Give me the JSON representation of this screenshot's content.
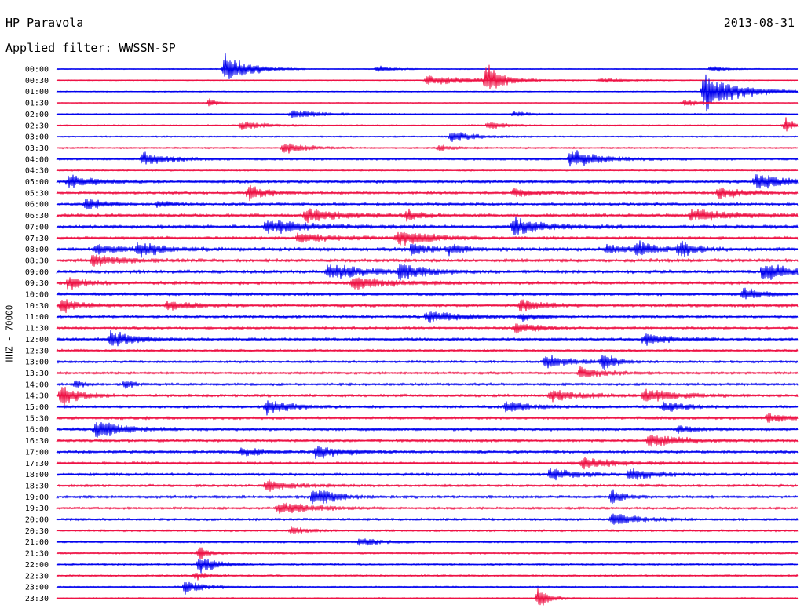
{
  "header": {
    "station": "HP Paravola",
    "date": "2013-08-31",
    "filter": "Applied filter: WWSSN-SP"
  },
  "channel_label": "HHZ - 70000",
  "colors": {
    "trace_a": "#0000ee",
    "trace_b": "#ee1144",
    "background": "#ffffff",
    "text": "#000000"
  },
  "chart_data": {
    "type": "line",
    "title": "",
    "ylabel": "HHZ - 70000",
    "xlabel": "",
    "grid": false,
    "legend": "none",
    "row_labels": [
      "00:00",
      "00:30",
      "01:00",
      "01:30",
      "02:00",
      "02:30",
      "03:00",
      "03:30",
      "04:00",
      "04:30",
      "05:00",
      "05:30",
      "06:00",
      "06:30",
      "07:00",
      "07:30",
      "08:00",
      "08:30",
      "09:00",
      "09:30",
      "10:00",
      "10:30",
      "11:00",
      "11:30",
      "12:00",
      "12:30",
      "13:00",
      "13:30",
      "14:00",
      "14:30",
      "15:00",
      "15:30",
      "16:00",
      "16:30",
      "17:00",
      "17:30",
      "18:00",
      "18:30",
      "19:00",
      "19:30",
      "20:00",
      "20:30",
      "21:00",
      "21:30",
      "22:00",
      "22:30",
      "23:00",
      "23:30"
    ],
    "row_minutes": 30,
    "color_cycle": [
      "trace_a",
      "trace_b"
    ],
    "background_noise": [
      0.5,
      0.5,
      0.6,
      0.5,
      0.7,
      0.8,
      0.8,
      0.9,
      1.2,
      0.8,
      1.6,
      1.4,
      1.5,
      1.8,
      1.8,
      1.6,
      1.9,
      1.8,
      1.8,
      1.7,
      1.5,
      1.7,
      1.4,
      1.3,
      1.5,
      1.3,
      1.3,
      1.3,
      1.4,
      1.5,
      1.5,
      1.5,
      1.6,
      1.5,
      1.5,
      1.4,
      1.5,
      1.4,
      1.5,
      1.3,
      1.3,
      1.1,
      1.1,
      1.0,
      1.0,
      1.0,
      0.9,
      0.8
    ],
    "events": [
      {
        "row": 0,
        "minute": 6.8,
        "amplitude": 22,
        "duration": 1.5
      },
      {
        "row": 0,
        "minute": 13,
        "amplitude": 5,
        "duration": 1
      },
      {
        "row": 0,
        "minute": 26.5,
        "amplitude": 4,
        "duration": 1
      },
      {
        "row": 1,
        "minute": 15,
        "amplitude": 7,
        "duration": 3.5
      },
      {
        "row": 1,
        "minute": 17.4,
        "amplitude": 22,
        "duration": 1
      },
      {
        "row": 1,
        "minute": 22,
        "amplitude": 3,
        "duration": 2
      },
      {
        "row": 2,
        "minute": 26.2,
        "amplitude": 30,
        "duration": 2
      },
      {
        "row": 3,
        "minute": 6.2,
        "amplitude": 8,
        "duration": 0.4
      },
      {
        "row": 3,
        "minute": 25.4,
        "amplitude": 5,
        "duration": 1
      },
      {
        "row": 4,
        "minute": 9.5,
        "amplitude": 6,
        "duration": 2
      },
      {
        "row": 4,
        "minute": 18.5,
        "amplitude": 4,
        "duration": 1
      },
      {
        "row": 5,
        "minute": 7.5,
        "amplitude": 6,
        "duration": 1.5
      },
      {
        "row": 5,
        "minute": 17.5,
        "amplitude": 6,
        "duration": 1
      },
      {
        "row": 5,
        "minute": 29.5,
        "amplitude": 10,
        "duration": 0.6
      },
      {
        "row": 6,
        "minute": 16,
        "amplitude": 8,
        "duration": 1.5
      },
      {
        "row": 7,
        "minute": 9.2,
        "amplitude": 8,
        "duration": 1.5
      },
      {
        "row": 7,
        "minute": 15.5,
        "amplitude": 4,
        "duration": 1
      },
      {
        "row": 8,
        "minute": 3.5,
        "amplitude": 10,
        "duration": 1.5
      },
      {
        "row": 8,
        "minute": 20.8,
        "amplitude": 14,
        "duration": 1.8
      },
      {
        "row": 10,
        "minute": 0.5,
        "amplitude": 9,
        "duration": 1.5
      },
      {
        "row": 10,
        "minute": 28.3,
        "amplitude": 10,
        "duration": 2
      },
      {
        "row": 11,
        "minute": 7.8,
        "amplitude": 12,
        "duration": 1
      },
      {
        "row": 11,
        "minute": 18.5,
        "amplitude": 6,
        "duration": 1.5
      },
      {
        "row": 11,
        "minute": 26.8,
        "amplitude": 9,
        "duration": 1.5
      },
      {
        "row": 12,
        "minute": 1.2,
        "amplitude": 8,
        "duration": 1.2
      },
      {
        "row": 12,
        "minute": 4.1,
        "amplitude": 6,
        "duration": 0.8
      },
      {
        "row": 13,
        "minute": 10.1,
        "amplitude": 10,
        "duration": 2
      },
      {
        "row": 13,
        "minute": 14.2,
        "amplitude": 8,
        "duration": 0.8
      },
      {
        "row": 13,
        "minute": 25.7,
        "amplitude": 9,
        "duration": 2
      },
      {
        "row": 14,
        "minute": 8.5,
        "amplitude": 10,
        "duration": 2.5
      },
      {
        "row": 14,
        "minute": 18.5,
        "amplitude": 12,
        "duration": 2
      },
      {
        "row": 15,
        "minute": 9.8,
        "amplitude": 7,
        "duration": 2
      },
      {
        "row": 15,
        "minute": 13.8,
        "amplitude": 12,
        "duration": 2
      },
      {
        "row": 16,
        "minute": 1.6,
        "amplitude": 6,
        "duration": 1.5
      },
      {
        "row": 16,
        "minute": 3.3,
        "amplitude": 10,
        "duration": 1.5
      },
      {
        "row": 16,
        "minute": 14.4,
        "amplitude": 10,
        "duration": 1
      },
      {
        "row": 16,
        "minute": 15.9,
        "amplitude": 7,
        "duration": 1
      },
      {
        "row": 16,
        "minute": 22.3,
        "amplitude": 8,
        "duration": 1
      },
      {
        "row": 16,
        "minute": 23.5,
        "amplitude": 12,
        "duration": 1
      },
      {
        "row": 16,
        "minute": 25.2,
        "amplitude": 12,
        "duration": 1
      },
      {
        "row": 17,
        "minute": 1.5,
        "amplitude": 10,
        "duration": 1.5
      },
      {
        "row": 18,
        "minute": 11,
        "amplitude": 10,
        "duration": 2.5
      },
      {
        "row": 18,
        "minute": 13.9,
        "amplitude": 12,
        "duration": 1.5
      },
      {
        "row": 18,
        "minute": 28.6,
        "amplitude": 14,
        "duration": 1.5
      },
      {
        "row": 19,
        "minute": 0.5,
        "amplitude": 10,
        "duration": 1
      },
      {
        "row": 19,
        "minute": 12,
        "amplitude": 10,
        "duration": 2
      },
      {
        "row": 20,
        "minute": 27.8,
        "amplitude": 9,
        "duration": 1
      },
      {
        "row": 21,
        "minute": 0.2,
        "amplitude": 12,
        "duration": 1
      },
      {
        "row": 21,
        "minute": 4.5,
        "amplitude": 7,
        "duration": 1.5
      },
      {
        "row": 21,
        "minute": 18.8,
        "amplitude": 8,
        "duration": 1.5
      },
      {
        "row": 22,
        "minute": 15,
        "amplitude": 8,
        "duration": 2.5
      },
      {
        "row": 22,
        "minute": 18.8,
        "amplitude": 6,
        "duration": 1
      },
      {
        "row": 23,
        "minute": 18.6,
        "amplitude": 9,
        "duration": 1.2
      },
      {
        "row": 24,
        "minute": 2.2,
        "amplitude": 12,
        "duration": 1.5
      },
      {
        "row": 24,
        "minute": 23.8,
        "amplitude": 10,
        "duration": 1.5
      },
      {
        "row": 26,
        "minute": 19.8,
        "amplitude": 10,
        "duration": 1.5
      },
      {
        "row": 26,
        "minute": 22.1,
        "amplitude": 14,
        "duration": 0.8
      },
      {
        "row": 27,
        "minute": 21.2,
        "amplitude": 8,
        "duration": 1.5
      },
      {
        "row": 28,
        "minute": 2.8,
        "amplitude": 8,
        "duration": 0.5
      },
      {
        "row": 28,
        "minute": 0.8,
        "amplitude": 6,
        "duration": 0.5
      },
      {
        "row": 29,
        "minute": 0.2,
        "amplitude": 20,
        "duration": 1
      },
      {
        "row": 29,
        "minute": 20,
        "amplitude": 8,
        "duration": 2
      },
      {
        "row": 29,
        "minute": 23.8,
        "amplitude": 10,
        "duration": 2
      },
      {
        "row": 30,
        "minute": 8.5,
        "amplitude": 10,
        "duration": 1.5
      },
      {
        "row": 30,
        "minute": 18.2,
        "amplitude": 8,
        "duration": 1.5
      },
      {
        "row": 30,
        "minute": 24.6,
        "amplitude": 7,
        "duration": 1.5
      },
      {
        "row": 31,
        "minute": 28.8,
        "amplitude": 6,
        "duration": 1.5
      },
      {
        "row": 32,
        "minute": 1.6,
        "amplitude": 14,
        "duration": 1.5
      },
      {
        "row": 32,
        "minute": 25.2,
        "amplitude": 6,
        "duration": 1
      },
      {
        "row": 33,
        "minute": 24,
        "amplitude": 9,
        "duration": 2
      },
      {
        "row": 34,
        "minute": 7.5,
        "amplitude": 6,
        "duration": 1.5
      },
      {
        "row": 34,
        "minute": 10.5,
        "amplitude": 10,
        "duration": 1.5
      },
      {
        "row": 35,
        "minute": 21.3,
        "amplitude": 8,
        "duration": 2
      },
      {
        "row": 36,
        "minute": 20,
        "amplitude": 10,
        "duration": 1.5
      },
      {
        "row": 36,
        "minute": 23.2,
        "amplitude": 9,
        "duration": 1.5
      },
      {
        "row": 37,
        "minute": 8.5,
        "amplitude": 7,
        "duration": 2
      },
      {
        "row": 38,
        "minute": 10.4,
        "amplitude": 16,
        "duration": 1.2
      },
      {
        "row": 38,
        "minute": 22.5,
        "amplitude": 10,
        "duration": 0.8
      },
      {
        "row": 39,
        "minute": 9,
        "amplitude": 10,
        "duration": 2
      },
      {
        "row": 40,
        "minute": 22.5,
        "amplitude": 9,
        "duration": 1.5
      },
      {
        "row": 41,
        "minute": 9.5,
        "amplitude": 6,
        "duration": 1
      },
      {
        "row": 42,
        "minute": 12.3,
        "amplitude": 6,
        "duration": 1
      },
      {
        "row": 43,
        "minute": 5.8,
        "amplitude": 10,
        "duration": 0.6
      },
      {
        "row": 44,
        "minute": 5.8,
        "amplitude": 14,
        "duration": 1
      },
      {
        "row": 45,
        "minute": 5.6,
        "amplitude": 6,
        "duration": 0.8
      },
      {
        "row": 46,
        "minute": 5.2,
        "amplitude": 10,
        "duration": 1.2
      },
      {
        "row": 47,
        "minute": 19.5,
        "amplitude": 14,
        "duration": 0.8
      }
    ]
  }
}
